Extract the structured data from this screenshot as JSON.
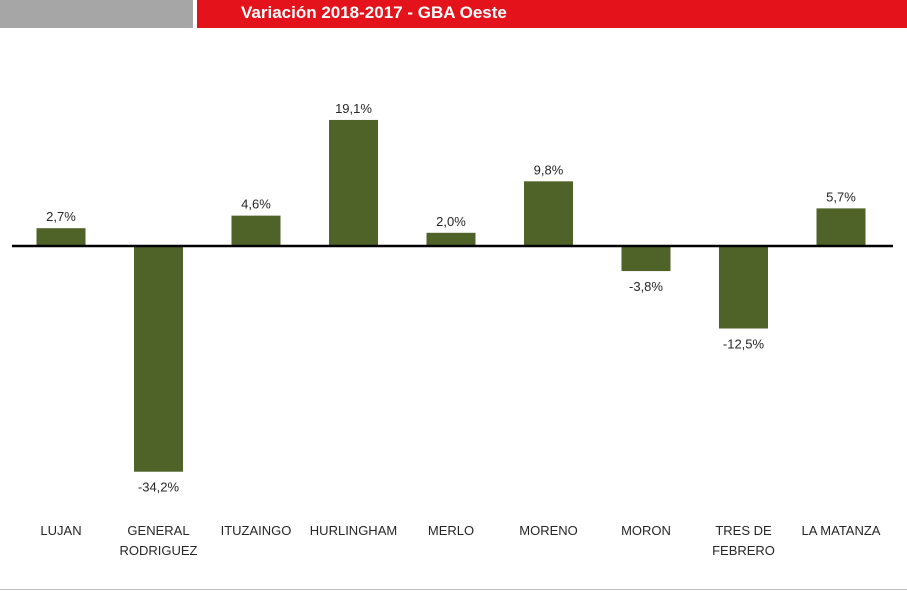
{
  "header": {
    "title": "Variación 2018-2017 - GBA Oeste"
  },
  "colors": {
    "bar": "#4f6228",
    "header_red": "#e3121b",
    "header_gray": "#a6a6a6",
    "axis": "#000000"
  },
  "chart_data": {
    "type": "bar",
    "title": "",
    "xlabel": "",
    "ylabel": "",
    "ylim": [
      -36,
      20
    ],
    "grid": false,
    "legend": "none",
    "categories": [
      [
        "LUJAN"
      ],
      [
        "GENERAL",
        "RODRIGUEZ"
      ],
      [
        "ITUZAINGO"
      ],
      [
        "HURLINGHAM"
      ],
      [
        "MERLO"
      ],
      [
        "MORENO"
      ],
      [
        "MORON"
      ],
      [
        "TRES DE",
        "FEBRERO"
      ],
      [
        "LA MATANZA"
      ]
    ],
    "values": [
      2.7,
      -34.2,
      4.6,
      19.1,
      2.0,
      9.8,
      -3.8,
      -12.5,
      5.7
    ],
    "data_labels": [
      "2,7%",
      "-34,2%",
      "4,6%",
      "19,1%",
      "2,0%",
      "9,8%",
      "-3,8%",
      "-12,5%",
      "5,7%"
    ]
  }
}
